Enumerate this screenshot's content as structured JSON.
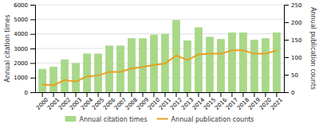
{
  "chart_data": {
    "type": "bar",
    "categories": [
      "2000",
      "2001",
      "2002",
      "2003",
      "2004",
      "2005",
      "2006",
      "2007",
      "2008",
      "2009",
      "2010",
      "2011",
      "2012",
      "2013",
      "2014",
      "2015",
      "2016",
      "2017",
      "2018",
      "2019",
      "2020",
      "2021"
    ],
    "series": [
      {
        "name": "Annual citation times",
        "type": "bar",
        "color": "#a8d888",
        "values": [
          1600,
          1750,
          2250,
          2000,
          2650,
          2650,
          3200,
          3200,
          3700,
          3700,
          3950,
          4000,
          4950,
          3550,
          4450,
          3800,
          3650,
          4100,
          4100,
          3600,
          3700,
          4100
        ]
      },
      {
        "name": "Annual publication counts",
        "type": "line",
        "color": "#e8a020",
        "axis": "y2",
        "values": [
          22,
          20,
          35,
          30,
          45,
          48,
          58,
          58,
          68,
          72,
          78,
          82,
          105,
          92,
          108,
          110,
          110,
          120,
          120,
          110,
          110,
          120
        ]
      }
    ],
    "ylabel": "Annual citation times",
    "y2label": "Annual publication counts",
    "ylim": [
      0,
      6000
    ],
    "yticks": [
      0,
      1000,
      2000,
      3000,
      4000,
      5000,
      6000
    ],
    "y2lim": [
      0,
      250
    ],
    "y2ticks": [
      0,
      50,
      100,
      150,
      200,
      250
    ],
    "grid": true,
    "legend": "bottom"
  }
}
